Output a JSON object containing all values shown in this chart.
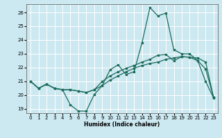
{
  "title": "",
  "xlabel": "Humidex (Indice chaleur)",
  "bg_color": "#cce8f0",
  "line_color": "#1a6b5a",
  "grid_color": "#ffffff",
  "xlim": [
    -0.5,
    23.5
  ],
  "ylim": [
    18.7,
    26.6
  ],
  "yticks": [
    19,
    20,
    21,
    22,
    23,
    24,
    25,
    26
  ],
  "xticks": [
    0,
    1,
    2,
    3,
    4,
    5,
    6,
    7,
    8,
    9,
    10,
    11,
    12,
    13,
    14,
    15,
    16,
    17,
    18,
    19,
    20,
    21,
    22,
    23
  ],
  "line1_x": [
    0,
    1,
    2,
    3,
    4,
    5,
    6,
    7,
    8,
    9,
    10,
    11,
    12,
    13,
    14,
    15,
    16,
    17,
    18,
    19,
    20,
    21,
    22,
    23
  ],
  "line1_y": [
    21.0,
    20.5,
    20.8,
    20.5,
    20.4,
    19.3,
    18.85,
    18.85,
    20.05,
    20.7,
    21.85,
    22.2,
    21.5,
    21.7,
    23.8,
    26.35,
    25.75,
    25.95,
    23.3,
    23.0,
    23.0,
    22.5,
    21.0,
    19.8
  ],
  "line2_x": [
    0,
    1,
    2,
    3,
    4,
    5,
    6,
    7,
    8,
    9,
    10,
    11,
    12,
    13,
    14,
    15,
    16,
    17,
    18,
    19,
    20,
    21,
    22,
    23
  ],
  "line2_y": [
    21.0,
    20.5,
    20.8,
    20.5,
    20.4,
    20.4,
    20.3,
    20.2,
    20.4,
    20.7,
    21.1,
    21.4,
    21.7,
    21.95,
    22.15,
    22.3,
    22.4,
    22.6,
    22.7,
    22.8,
    22.75,
    22.7,
    22.4,
    19.85
  ],
  "line3_x": [
    0,
    1,
    2,
    3,
    4,
    5,
    6,
    7,
    8,
    9,
    10,
    11,
    12,
    13,
    14,
    15,
    16,
    17,
    18,
    19,
    20,
    21,
    22,
    23
  ],
  "line3_y": [
    21.0,
    20.5,
    20.8,
    20.5,
    20.4,
    20.4,
    20.3,
    20.2,
    20.4,
    21.0,
    21.4,
    21.7,
    21.95,
    22.15,
    22.4,
    22.6,
    22.9,
    22.95,
    22.5,
    22.8,
    22.75,
    22.5,
    21.9,
    19.85
  ]
}
